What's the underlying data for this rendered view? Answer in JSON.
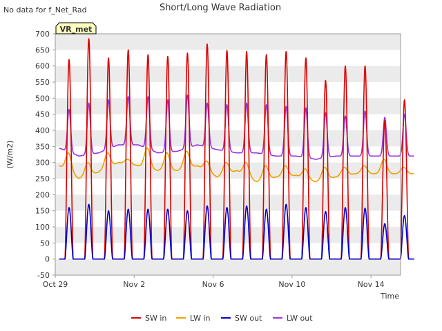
{
  "header": {
    "title": "Short/Long Wave Radiation",
    "no_data_note": "No data for f_Net_Rad",
    "station_badge": "VR_met"
  },
  "colors": {
    "sw_in": "#dd0000",
    "lw_in": "#f0a000",
    "sw_out": "#0000cc",
    "lw_out": "#9933dd",
    "band": "#ebebeb",
    "badge_bg": "#ffffc0",
    "badge_text": "#990000"
  },
  "chart_data": {
    "type": "line",
    "title": "Short/Long Wave Radiation",
    "xlabel": "Time",
    "ylabel": "(W/m2)",
    "ylim": [
      -50,
      700
    ],
    "xlim_days": [
      0,
      17.5
    ],
    "yticks": [
      -50,
      0,
      50,
      100,
      150,
      200,
      250,
      300,
      350,
      400,
      450,
      500,
      550,
      600,
      650,
      700
    ],
    "xticks": [
      {
        "day": 0,
        "label": "Oct 29"
      },
      {
        "day": 4,
        "label": "Nov 2"
      },
      {
        "day": 8,
        "label": "Nov 6"
      },
      {
        "day": 12,
        "label": "Nov 10"
      },
      {
        "day": 16,
        "label": "Nov 14"
      }
    ],
    "grid": "alternating horizontal bands",
    "legend_position": "bottom",
    "x_units": "days since Oct 29",
    "series": [
      {
        "name": "SW in",
        "daily_peaks": [
          620,
          685,
          625,
          650,
          635,
          630,
          640,
          668,
          648,
          645,
          635,
          645,
          625,
          555,
          600,
          600,
          430,
          495
        ]
      },
      {
        "name": "LW in",
        "daily_peaks": [
          330,
          300,
          330,
          310,
          345,
          330,
          335,
          305,
          300,
          300,
          290,
          290,
          280,
          285,
          285,
          290,
          310,
          285
        ],
        "daily_lows": [
          290,
          250,
          270,
          300,
          290,
          275,
          275,
          290,
          255,
          275,
          240,
          255,
          260,
          240,
          255,
          265,
          265,
          265
        ]
      },
      {
        "name": "SW out",
        "daily_peaks": [
          160,
          170,
          150,
          155,
          155,
          155,
          150,
          165,
          160,
          165,
          155,
          170,
          160,
          148,
          160,
          158,
          110,
          135
        ]
      },
      {
        "name": "LW out",
        "daily_peaks": [
          465,
          485,
          495,
          505,
          505,
          495,
          510,
          485,
          480,
          485,
          480,
          475,
          470,
          455,
          445,
          460,
          440,
          450
        ],
        "daily_lows": [
          345,
          320,
          330,
          355,
          355,
          330,
          335,
          355,
          340,
          330,
          330,
          320,
          320,
          310,
          320,
          320,
          320,
          320
        ]
      }
    ]
  },
  "legend": {
    "items": [
      {
        "label": "SW in",
        "key": "sw_in"
      },
      {
        "label": "LW in",
        "key": "lw_in"
      },
      {
        "label": "SW out",
        "key": "sw_out"
      },
      {
        "label": "LW out",
        "key": "lw_out"
      }
    ]
  }
}
